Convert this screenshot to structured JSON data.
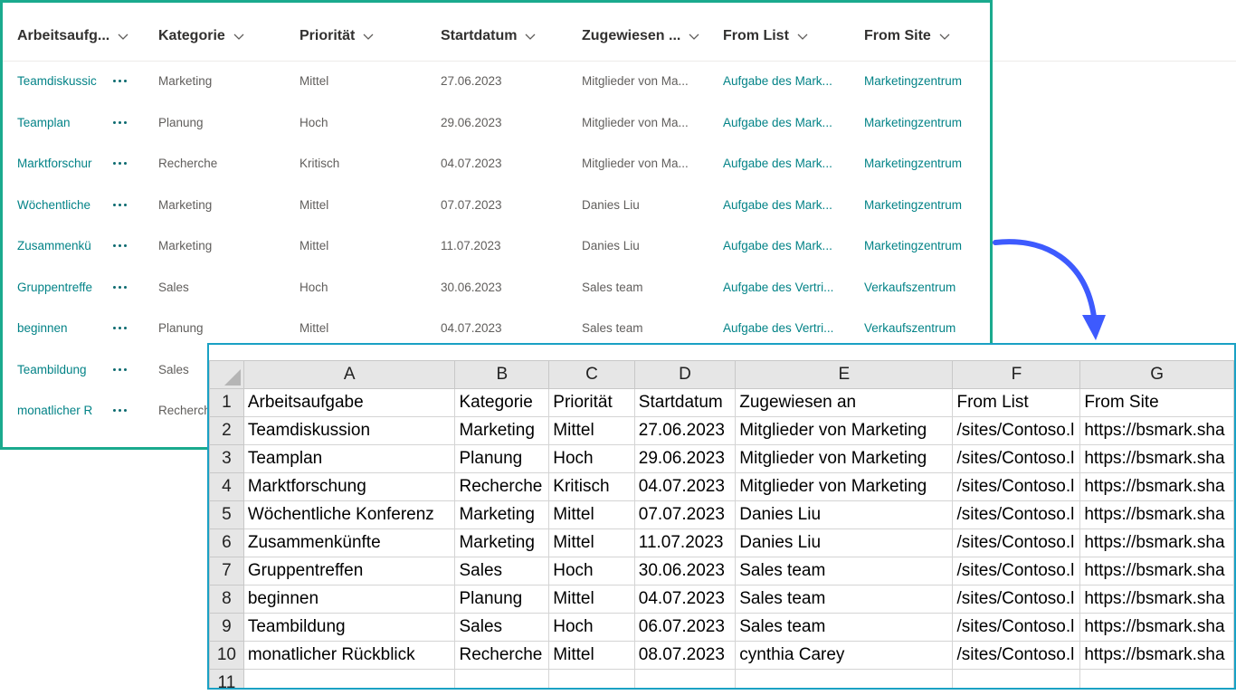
{
  "sharepoint_list": {
    "columns": [
      {
        "label": "Arbeitsaufg..."
      },
      {
        "label": "Kategorie"
      },
      {
        "label": "Priorität"
      },
      {
        "label": "Startdatum"
      },
      {
        "label": "Zugewiesen ..."
      },
      {
        "label": "From List"
      },
      {
        "label": "From Site"
      }
    ],
    "rows": [
      {
        "task": "Teamdiskussic",
        "category": "Marketing",
        "priority": "Mittel",
        "start": "27.06.2023",
        "assigned": "Mitglieder von Ma...",
        "from_list": "Aufgabe des Mark...",
        "from_site": "Marketingzentrum"
      },
      {
        "task": "Teamplan",
        "category": "Planung",
        "priority": "Hoch",
        "start": "29.06.2023",
        "assigned": "Mitglieder von Ma...",
        "from_list": "Aufgabe des Mark...",
        "from_site": "Marketingzentrum"
      },
      {
        "task": "Marktforschur",
        "category": "Recherche",
        "priority": "Kritisch",
        "start": "04.07.2023",
        "assigned": "Mitglieder von Ma...",
        "from_list": "Aufgabe des Mark...",
        "from_site": "Marketingzentrum"
      },
      {
        "task": "Wöchentliche",
        "category": "Marketing",
        "priority": "Mittel",
        "start": "07.07.2023",
        "assigned": "Danies Liu",
        "from_list": "Aufgabe des Mark...",
        "from_site": "Marketingzentrum"
      },
      {
        "task": "Zusammenkü",
        "category": "Marketing",
        "priority": "Mittel",
        "start": "11.07.2023",
        "assigned": "Danies Liu",
        "from_list": "Aufgabe des Mark...",
        "from_site": "Marketingzentrum"
      },
      {
        "task": "Gruppentreffe",
        "category": "Sales",
        "priority": "Hoch",
        "start": "30.06.2023",
        "assigned": "Sales team",
        "from_list": "Aufgabe des Vertri...",
        "from_site": "Verkaufszentrum"
      },
      {
        "task": "beginnen",
        "category": "Planung",
        "priority": "Mittel",
        "start": "04.07.2023",
        "assigned": "Sales team",
        "from_list": "Aufgabe des Vertri...",
        "from_site": "Verkaufszentrum"
      },
      {
        "task": "Teambildung",
        "category": "Sales",
        "priority": "",
        "start": "",
        "assigned": "",
        "from_list": "",
        "from_site": ""
      },
      {
        "task": "monatlicher R",
        "category": "Recherch",
        "priority": "",
        "start": "",
        "assigned": "",
        "from_list": "",
        "from_site": ""
      }
    ]
  },
  "excel": {
    "column_letters": [
      "A",
      "B",
      "C",
      "D",
      "E",
      "F",
      "G"
    ],
    "row_numbers": [
      "1",
      "2",
      "3",
      "4",
      "5",
      "6",
      "7",
      "8",
      "9",
      "10",
      "11"
    ],
    "cells": [
      [
        "Arbeitsaufgabe",
        "Kategorie",
        "Priorität",
        "Startdatum",
        "Zugewiesen an",
        "From List",
        "From Site"
      ],
      [
        "Teamdiskussion",
        "Marketing",
        "Mittel",
        "27.06.2023",
        "Mitglieder von Marketing",
        "/sites/Contoso.l",
        "https://bsmark.sha"
      ],
      [
        "Teamplan",
        "Planung",
        "Hoch",
        "29.06.2023",
        "Mitglieder von Marketing",
        "/sites/Contoso.l",
        "https://bsmark.sha"
      ],
      [
        "Marktforschung",
        "Recherche",
        "Kritisch",
        "04.07.2023",
        "Mitglieder von Marketing",
        "/sites/Contoso.l",
        "https://bsmark.sha"
      ],
      [
        "Wöchentliche Konferenz",
        "Marketing",
        "Mittel",
        "07.07.2023",
        "Danies Liu",
        "/sites/Contoso.l",
        "https://bsmark.sha"
      ],
      [
        "Zusammenkünfte",
        "Marketing",
        "Mittel",
        "11.07.2023",
        "Danies Liu",
        "/sites/Contoso.l",
        "https://bsmark.sha"
      ],
      [
        "Gruppentreffen",
        "Sales",
        "Hoch",
        "30.06.2023",
        "Sales team",
        "/sites/Contoso.l",
        "https://bsmark.sha"
      ],
      [
        "beginnen",
        "Planung",
        "Mittel",
        "04.07.2023",
        "Sales team",
        "/sites/Contoso.l",
        "https://bsmark.sha"
      ],
      [
        "Teambildung",
        "Sales",
        "Hoch",
        "06.07.2023",
        "Sales team",
        "/sites/Contoso.l",
        "https://bsmark.sha"
      ],
      [
        "monatlicher Rückblick",
        "Recherche",
        "Mittel",
        "08.07.2023",
        "cynthia Carey",
        "/sites/Contoso.l",
        "https://bsmark.sha"
      ],
      [
        "",
        "",
        "",
        "",
        "",
        "",
        ""
      ]
    ]
  },
  "colors": {
    "list_border": "#1aaa8e",
    "excel_border": "#1aa1c4",
    "arrow": "#3d5afe",
    "link_text": "#038387"
  }
}
